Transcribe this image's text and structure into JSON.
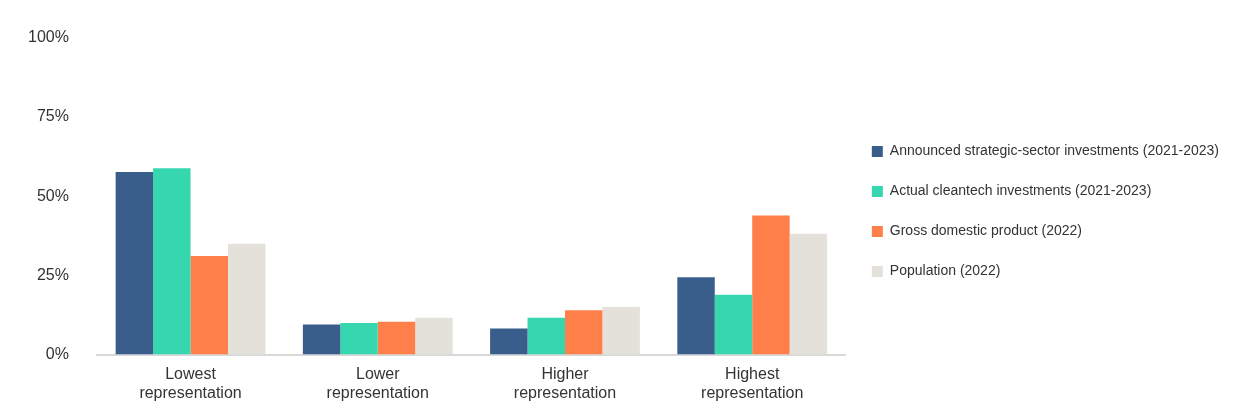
{
  "chart_data": {
    "type": "bar",
    "categories": [
      "Lowest representation",
      "Lower representation",
      "Higher representation",
      "Highest representation"
    ],
    "series": [
      {
        "name": "Announced strategic-sector investments (2021-2023)",
        "color": "#3a5e8c",
        "values": [
          57.6,
          9.5,
          8.2,
          24.4
        ]
      },
      {
        "name": "Actual cleantech investments (2021-2023)",
        "color": "#36d6ae",
        "values": [
          58.8,
          10,
          11.6,
          18.9
        ]
      },
      {
        "name": "Gross domestic product (2022)",
        "color": "#ff7f4a",
        "values": [
          31.1,
          10.4,
          14,
          43.9
        ]
      },
      {
        "name": "Population (2022)",
        "color": "#e3e1da",
        "values": [
          35,
          11.6,
          15,
          38.1
        ]
      }
    ],
    "ylim": [
      0,
      100
    ],
    "yticks": [
      {
        "value": 0,
        "label": "0%"
      },
      {
        "value": 25,
        "label": "25%"
      },
      {
        "value": 50,
        "label": "50%"
      },
      {
        "value": 75,
        "label": "75%"
      },
      {
        "value": 100,
        "label": "100%"
      }
    ],
    "grid": false,
    "legend": "right"
  }
}
